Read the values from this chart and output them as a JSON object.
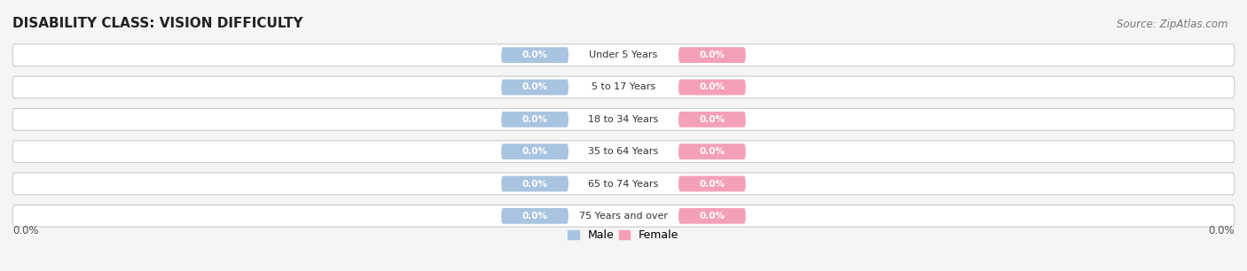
{
  "title": "DISABILITY CLASS: VISION DIFFICULTY",
  "source": "Source: ZipAtlas.com",
  "categories": [
    "Under 5 Years",
    "5 to 17 Years",
    "18 to 34 Years",
    "35 to 64 Years",
    "65 to 74 Years",
    "75 Years and over"
  ],
  "male_values": [
    0.0,
    0.0,
    0.0,
    0.0,
    0.0,
    0.0
  ],
  "female_values": [
    0.0,
    0.0,
    0.0,
    0.0,
    0.0,
    0.0
  ],
  "male_color": "#a8c4e0",
  "female_color": "#f4a0b8",
  "bar_bg_color": "#e8e8e8",
  "bar_stroke_color": "#cccccc",
  "title_fontsize": 11,
  "source_fontsize": 8.5,
  "axis_label_fontsize": 8.5,
  "legend_fontsize": 9,
  "value_label_fontsize": 7.5,
  "category_fontsize": 8,
  "left_axis_label": "0.0%",
  "right_axis_label": "0.0%",
  "background_color": "#f5f5f5"
}
